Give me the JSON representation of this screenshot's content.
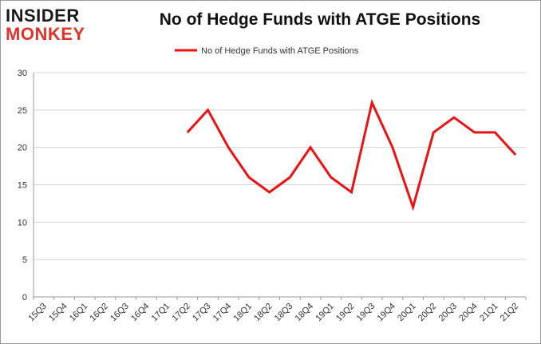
{
  "logo": {
    "line1": "INSIDER",
    "line2": "MONKEY"
  },
  "chart_data": {
    "type": "line",
    "title": "No of Hedge Funds with ATGE Positions",
    "xlabel": "",
    "ylabel": "",
    "categories": [
      "15Q3",
      "15Q4",
      "16Q1",
      "16Q2",
      "16Q3",
      "16Q4",
      "17Q1",
      "17Q2",
      "17Q3",
      "17Q4",
      "18Q1",
      "18Q2",
      "18Q3",
      "18Q4",
      "19Q1",
      "19Q2",
      "19Q3",
      "19Q4",
      "20Q1",
      "20Q2",
      "20Q3",
      "20Q4",
      "21Q1",
      "21Q2"
    ],
    "series": [
      {
        "name": "No of Hedge Funds with ATGE Positions",
        "color": "#ee1111",
        "values": [
          null,
          null,
          null,
          null,
          null,
          null,
          null,
          22,
          25,
          20,
          16,
          14,
          16,
          20,
          16,
          14,
          26,
          20,
          12,
          22,
          24,
          22,
          22,
          19
        ]
      }
    ],
    "ylim": [
      0,
      30
    ],
    "yticks": [
      0,
      5,
      10,
      15,
      20,
      25,
      30
    ],
    "grid": true,
    "legend_position": "top-center"
  }
}
